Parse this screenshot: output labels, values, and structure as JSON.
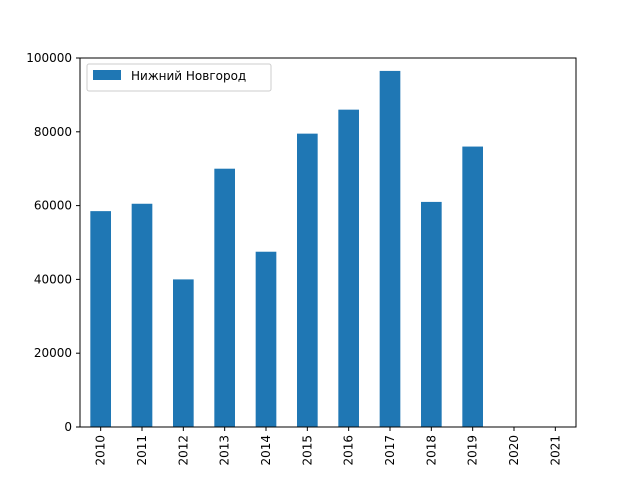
{
  "chart_data": {
    "type": "bar",
    "categories": [
      "2010",
      "2011",
      "2012",
      "2013",
      "2014",
      "2015",
      "2016",
      "2017",
      "2018",
      "2019",
      "2020",
      "2021"
    ],
    "series": [
      {
        "name": "Нижний Новгород",
        "color": "#1f77b4",
        "values": [
          58500,
          60500,
          40000,
          70000,
          47500,
          79500,
          86000,
          96500,
          61000,
          76000,
          0,
          0
        ]
      }
    ],
    "title": "",
    "xlabel": "",
    "ylabel": "",
    "ylim": [
      0,
      100000
    ],
    "yticks": [
      0,
      20000,
      40000,
      60000,
      80000,
      100000
    ],
    "ytick_labels": [
      "0",
      "20000",
      "40000",
      "60000",
      "80000",
      "100000"
    ],
    "grid": false,
    "legend_position": "top-left"
  }
}
